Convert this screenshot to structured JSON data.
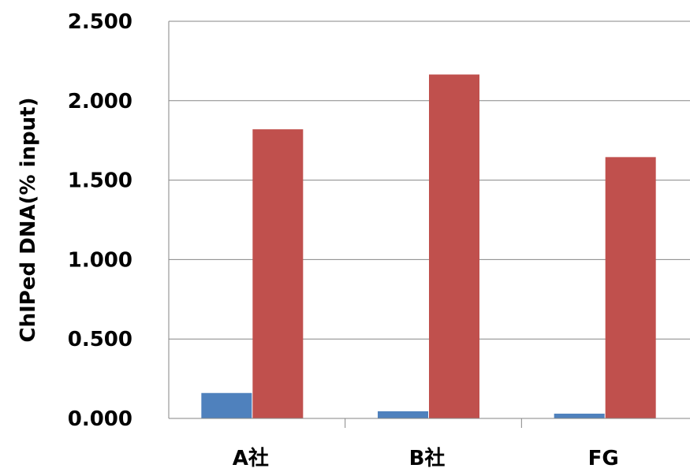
{
  "chart_data": {
    "type": "bar",
    "title": "",
    "xlabel": "",
    "ylabel": "ChIPed DNA(% input)",
    "categories": [
      "A社",
      "B社",
      "FG"
    ],
    "series": [
      {
        "color": "#4f81bd",
        "values": [
          0.16,
          0.045,
          0.03
        ]
      },
      {
        "color": "#c0504d",
        "values": [
          1.82,
          2.165,
          1.645
        ]
      }
    ],
    "ylim": [
      0,
      2.5
    ],
    "yticks": [
      "0.000",
      "0.500",
      "1.000",
      "1.500",
      "2.000",
      "2.500"
    ],
    "grid": true,
    "legend": "none"
  }
}
